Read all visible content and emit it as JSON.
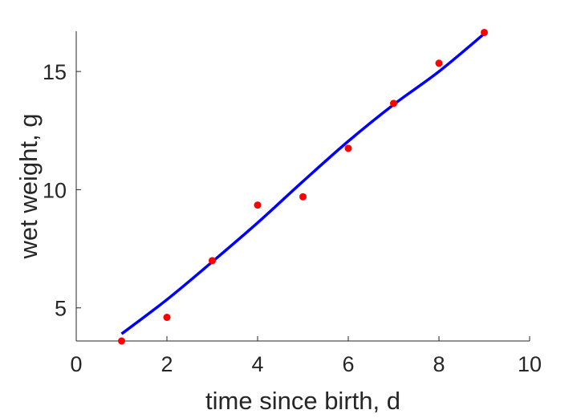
{
  "chart_data": {
    "type": "scatter",
    "title": "",
    "xlabel": "time since birth, d",
    "ylabel": "wet weight, g",
    "xlim": [
      0,
      10
    ],
    "ylim": [
      3.6,
      16.7
    ],
    "x_ticks": [
      0,
      2,
      4,
      6,
      8,
      10
    ],
    "y_ticks": [
      5,
      10,
      15
    ],
    "x_tick_labels": [
      "0",
      "2",
      "4",
      "6",
      "8",
      "10"
    ],
    "y_tick_labels": [
      "5",
      "10",
      "15"
    ],
    "grid": false,
    "legend": "none",
    "series": [
      {
        "kind": "points",
        "color": "#ff0000",
        "x": [
          1,
          2,
          3,
          4,
          5,
          6,
          7,
          8,
          9
        ],
        "y": [
          3.6,
          4.6,
          7.0,
          9.35,
          9.7,
          11.75,
          13.65,
          15.35,
          16.65
        ]
      },
      {
        "kind": "curve",
        "color": "#0000ff",
        "x": [
          1,
          2,
          3,
          4,
          5,
          6,
          7,
          8,
          9
        ],
        "y": [
          3.9,
          5.35,
          6.95,
          8.6,
          10.35,
          12.05,
          13.6,
          15.0,
          16.6
        ]
      }
    ]
  }
}
